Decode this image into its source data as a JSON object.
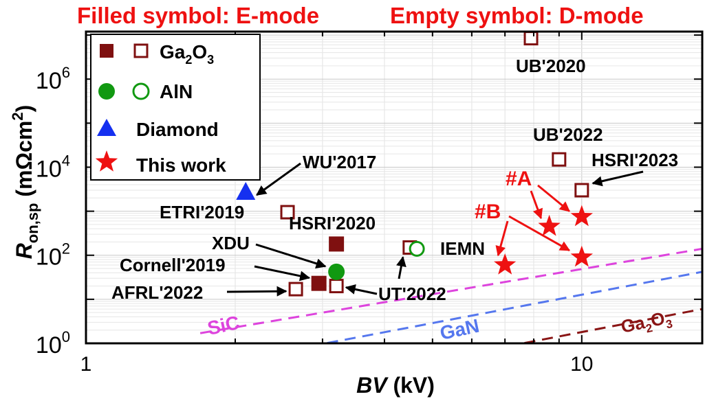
{
  "chart_data": {
    "type": "scatter",
    "header": {
      "left": "Filled symbol: E-mode",
      "right": "Empty symbol: D-mode"
    },
    "xlabel": {
      "italic": "BV",
      "unit": " (kV)"
    },
    "ylabel": {
      "main": "R",
      "sub": "on,sp",
      "rest": " (mΩcm",
      "sup": "2",
      "close": ")"
    },
    "x_scale": "log",
    "y_scale": "log",
    "xlim": [
      1,
      17.5
    ],
    "ylim": [
      1,
      12000000
    ],
    "x_ticks": [
      {
        "value": 1,
        "label": "1"
      },
      {
        "value": 10,
        "label": "10"
      }
    ],
    "y_ticks": [
      {
        "value": 1,
        "base": "10",
        "exp": "0"
      },
      {
        "value": 100,
        "base": "10",
        "exp": "2"
      },
      {
        "value": 10000,
        "base": "10",
        "exp": "4"
      },
      {
        "value": 1000000,
        "base": "10",
        "exp": "6"
      }
    ],
    "grid": true,
    "legend": {
      "position": "top-left",
      "entries": [
        {
          "label": "Ga",
          "sub": "2",
          "tail": "O",
          "sub2": "3",
          "marker": "square",
          "color": "#7f1010",
          "filled_and_empty": true
        },
        {
          "label": "AlN",
          "marker": "circle",
          "color": "#119911",
          "filled_and_empty": true
        },
        {
          "label": "Diamond",
          "marker": "triangle",
          "color": "#1530f0",
          "filled_and_empty": false
        },
        {
          "label": "This work",
          "marker": "star",
          "color": "#ee1111",
          "filled_and_empty": false
        }
      ]
    },
    "material_limits": [
      {
        "name": "SiC",
        "color": "#dd44dd",
        "points": [
          [
            1.7,
            1.7
          ],
          [
            17.5,
            140
          ]
        ]
      },
      {
        "name": "GaN",
        "color": "#5577ee",
        "points": [
          [
            2.4,
            0.6
          ],
          [
            17.5,
            42
          ]
        ]
      },
      {
        "name": "Ga",
        "name_sub": "2",
        "name_tail": "O",
        "name_sub2": "3",
        "color": "#8a1515",
        "points": [
          [
            6.0,
            0.6
          ],
          [
            17.5,
            6
          ]
        ]
      }
    ],
    "series": [
      {
        "name": "Ga2O3",
        "marker": "square",
        "color": "#7f1010",
        "points": [
          {
            "x": 7.9,
            "y": 8500000,
            "filled": false,
            "label": "UB'2020"
          },
          {
            "x": 9.0,
            "y": 15000,
            "filled": false,
            "label": "UB'2022"
          },
          {
            "x": 10.0,
            "y": 3000,
            "filled": false,
            "label": "HSRI'2023"
          },
          {
            "x": 2.55,
            "y": 950,
            "filled": false,
            "label": "ETRI'2019"
          },
          {
            "x": 3.2,
            "y": 180,
            "filled": true,
            "label": "HSRI'2020"
          },
          {
            "x": 4.5,
            "y": 150,
            "filled": false,
            "label": "IEMN"
          },
          {
            "x": 2.65,
            "y": 17,
            "filled": false,
            "label": "AFRL'2022"
          },
          {
            "x": 2.95,
            "y": 23,
            "filled": true,
            "label": "Cornell'2019"
          },
          {
            "x": 3.2,
            "y": 20,
            "filled": false,
            "label": "UT'2022"
          }
        ]
      },
      {
        "name": "AlN",
        "marker": "circle",
        "color": "#119911",
        "points": [
          {
            "x": 3.2,
            "y": 42,
            "filled": true,
            "label": "XDU"
          },
          {
            "x": 4.65,
            "y": 140,
            "filled": false,
            "label": ""
          }
        ]
      },
      {
        "name": "Diamond",
        "marker": "triangle",
        "color": "#1530f0",
        "points": [
          {
            "x": 2.1,
            "y": 2700,
            "filled": true,
            "label": "WU'2017"
          }
        ]
      },
      {
        "name": "This work",
        "marker": "star",
        "color": "#ee1111",
        "points": [
          {
            "x": 8.6,
            "y": 450,
            "filled": true,
            "label": ""
          },
          {
            "x": 10.0,
            "y": 750,
            "filled": true,
            "label": ""
          },
          {
            "x": 7.0,
            "y": 60,
            "filled": true,
            "label": ""
          },
          {
            "x": 10.0,
            "y": 90,
            "filled": true,
            "label": ""
          }
        ]
      }
    ],
    "annotations": [
      {
        "text": "#A",
        "color": "#ee1111"
      },
      {
        "text": "#B",
        "color": "#ee1111"
      }
    ]
  }
}
